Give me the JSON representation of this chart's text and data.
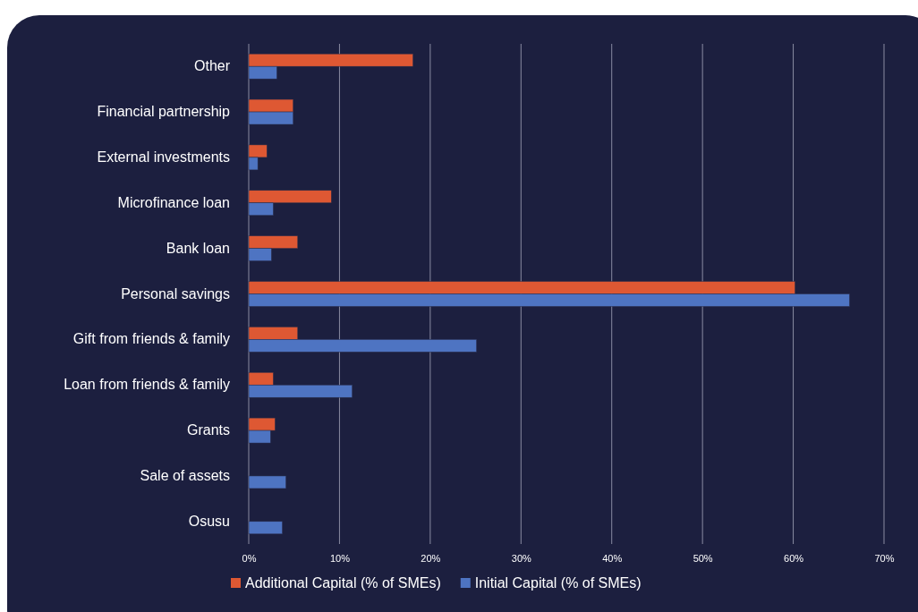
{
  "chart_data": {
    "type": "bar",
    "orientation": "horizontal",
    "categories": [
      "Other",
      "Financial partnership",
      "External investments",
      "Microfinance loan",
      "Bank loan",
      "Personal savings",
      "Gift from friends & family",
      "Loan from friends & family",
      "Grants",
      "Sale of assets",
      "Osusu"
    ],
    "series": [
      {
        "name": "Additional Capital (% of SMEs)",
        "color": "#de5833",
        "values": [
          18.1,
          4.9,
          2.0,
          9.1,
          5.4,
          60.2,
          5.4,
          2.7,
          2.9,
          null,
          null
        ]
      },
      {
        "name": "Initial Capital (% of SMEs)",
        "color": "#4e74c2",
        "values": [
          3.1,
          4.9,
          1.0,
          2.7,
          2.5,
          66.2,
          25.1,
          11.4,
          2.4,
          4.1,
          3.7
        ]
      }
    ],
    "xlim": [
      0,
      70
    ],
    "xticks": [
      {
        "value": 0,
        "label": "0%"
      },
      {
        "value": 10,
        "label": "10%"
      },
      {
        "value": 20,
        "label": "20%"
      },
      {
        "value": 30,
        "label": "30%"
      },
      {
        "value": 40,
        "label": "40%"
      },
      {
        "value": 50,
        "label": "50%"
      },
      {
        "value": 60,
        "label": "60%"
      },
      {
        "value": 70,
        "label": "70%"
      }
    ],
    "grid": "x",
    "legend": "bottom"
  }
}
